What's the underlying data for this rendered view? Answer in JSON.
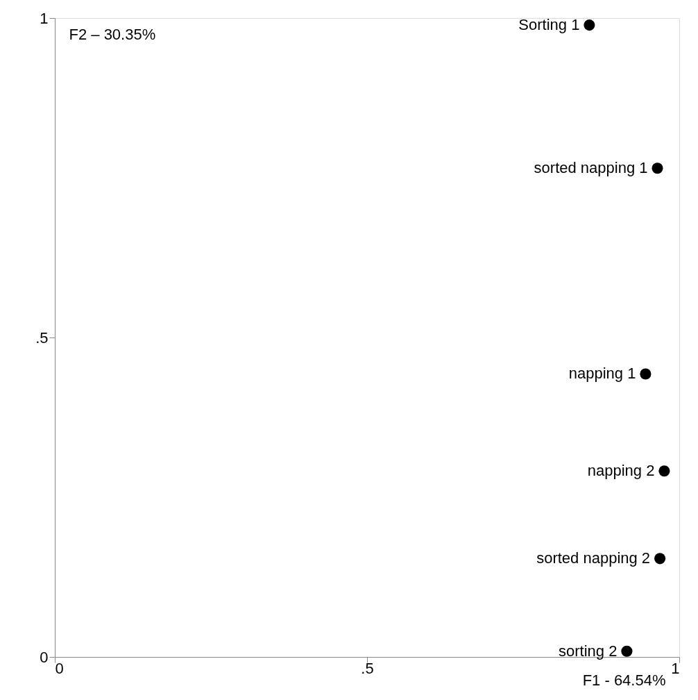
{
  "chart_data": {
    "type": "scatter",
    "xlabel": "F1 - 64.54%",
    "ylabel": "F2 – 30.35%",
    "xlim": [
      0,
      1
    ],
    "ylim": [
      0,
      1
    ],
    "xticks": [
      0,
      {
        "value": 0.5,
        "label": ".5"
      },
      1
    ],
    "yticks": [
      0,
      {
        "value": 0.5,
        "label": ".5"
      },
      1
    ],
    "grid": false,
    "series": [
      {
        "name": "Sorting 1",
        "color": "#000000",
        "x": [
          0.856
        ],
        "values": [
          0.989
        ]
      },
      {
        "name": "sorted napping 1",
        "color": "#000000",
        "x": [
          0.965
        ],
        "values": [
          0.765
        ]
      },
      {
        "name": "napping 1",
        "color": "#000000",
        "x": [
          0.946
        ],
        "values": [
          0.443
        ]
      },
      {
        "name": "napping 2",
        "color": "#000000",
        "x": [
          0.976
        ],
        "values": [
          0.291
        ]
      },
      {
        "name": "sorted napping 2",
        "color": "#000000",
        "x": [
          0.969
        ],
        "values": [
          0.154
        ]
      },
      {
        "name": "sorting 2",
        "color": "#000000",
        "x": [
          0.916
        ],
        "values": [
          0.009
        ]
      }
    ]
  }
}
